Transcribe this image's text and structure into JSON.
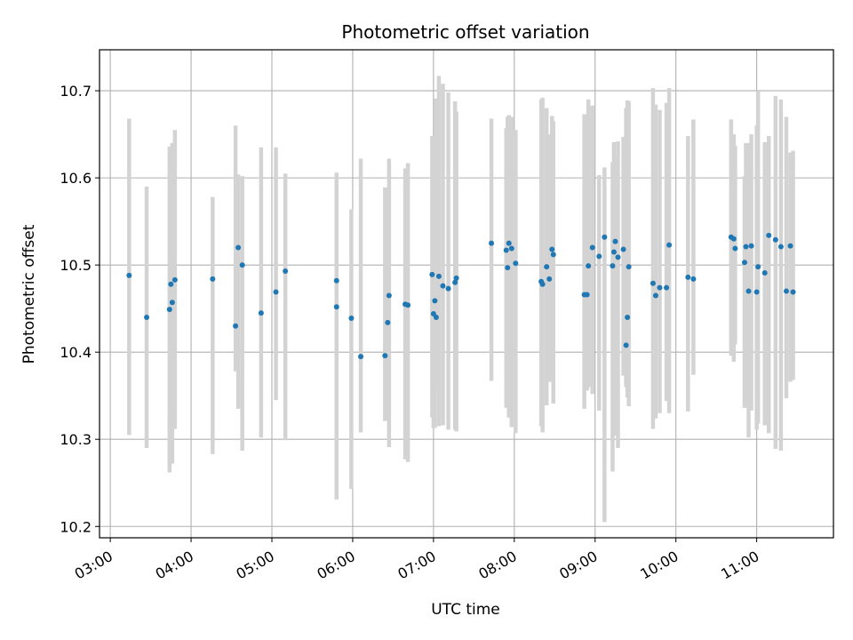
{
  "chart_data": {
    "type": "scatter",
    "title": "Photometric offset variation",
    "xlabel": "UTC time",
    "ylabel": "Photometric offset",
    "xlim": [
      "02:52",
      "11:57"
    ],
    "ylim": [
      10.187,
      10.747
    ],
    "x_ticks": [
      "03:00",
      "04:00",
      "05:00",
      "06:00",
      "07:00",
      "08:00",
      "09:00",
      "10:00",
      "11:00"
    ],
    "y_ticks": [
      "10.2",
      "10.3",
      "10.4",
      "10.5",
      "10.6",
      "10.7"
    ],
    "grid": true,
    "colors": {
      "points": "#1f77b4",
      "errorbars": "#d3d3d3",
      "grid": "#b0b0b0"
    },
    "series": [
      {
        "x": [
          "03:14",
          "03:27",
          "03:44",
          "03:46",
          "03:45",
          "03:48",
          "04:16",
          "04:33",
          "04:35",
          "04:38",
          "04:52",
          "05:03",
          "05:10",
          "05:48",
          "05:48",
          "05:59",
          "06:06",
          "06:24",
          "06:26",
          "06:27",
          "06:39",
          "06:41",
          "06:59",
          "07:01",
          "07:00",
          "07:02",
          "07:04",
          "07:07",
          "07:11",
          "07:16",
          "07:17",
          "07:43",
          "07:54",
          "07:55",
          "07:56",
          "07:58",
          "08:01",
          "08:20",
          "08:21",
          "08:24",
          "08:26",
          "08:28",
          "08:29",
          "08:52",
          "08:54",
          "08:55",
          "08:58",
          "09:03",
          "09:07",
          "09:13",
          "09:14",
          "09:15",
          "09:17",
          "09:21",
          "09:23",
          "09:24",
          "09:25",
          "09:43",
          "09:45",
          "09:48",
          "09:53",
          "09:55",
          "10:09",
          "10:13",
          "10:41",
          "10:43",
          "10:44",
          "10:51",
          "10:52",
          "10:54",
          "10:56",
          "11:00",
          "11:01",
          "11:06",
          "11:09",
          "11:14",
          "11:18",
          "11:22",
          "11:25",
          "11:27"
        ],
        "y": [
          10.488,
          10.44,
          10.449,
          10.457,
          10.478,
          10.483,
          10.484,
          10.43,
          10.52,
          10.5,
          10.445,
          10.469,
          10.493,
          10.482,
          10.452,
          10.439,
          10.395,
          10.396,
          10.434,
          10.465,
          10.455,
          10.454,
          10.489,
          10.459,
          10.444,
          10.44,
          10.487,
          10.476,
          10.473,
          10.48,
          10.485,
          10.525,
          10.517,
          10.497,
          10.525,
          10.519,
          10.502,
          10.481,
          10.478,
          10.498,
          10.484,
          10.518,
          10.512,
          10.466,
          10.466,
          10.499,
          10.52,
          10.51,
          10.532,
          10.499,
          10.515,
          10.527,
          10.509,
          10.518,
          10.408,
          10.44,
          10.498,
          10.479,
          10.465,
          10.474,
          10.474,
          10.523,
          10.486,
          10.484,
          10.532,
          10.53,
          10.519,
          10.503,
          10.521,
          10.47,
          10.522,
          10.469,
          10.498,
          10.491,
          10.534,
          10.529,
          10.521,
          10.47,
          10.522,
          10.469
        ],
        "yerr_low": [
          10.305,
          10.29,
          10.262,
          10.272,
          10.326,
          10.312,
          10.283,
          10.378,
          10.335,
          10.287,
          10.302,
          10.345,
          10.299,
          10.271,
          10.231,
          10.243,
          10.308,
          10.321,
          10.322,
          10.291,
          10.277,
          10.274,
          10.325,
          10.313,
          10.313,
          10.357,
          10.315,
          10.316,
          10.311,
          10.311,
          10.309,
          10.367,
          10.336,
          10.339,
          10.325,
          10.314,
          10.307,
          10.315,
          10.308,
          10.339,
          10.366,
          10.375,
          10.341,
          10.335,
          10.356,
          10.36,
          10.352,
          10.333,
          10.205,
          10.263,
          10.321,
          10.304,
          10.29,
          10.373,
          10.36,
          10.348,
          10.338,
          10.312,
          10.324,
          10.33,
          10.344,
          10.33,
          10.332,
          10.374,
          10.396,
          10.389,
          10.409,
          10.336,
          10.34,
          10.302,
          10.333,
          10.311,
          10.318,
          10.316,
          10.307,
          10.289,
          10.287,
          10.347,
          10.366,
          10.368
        ],
        "yerr_high": [
          10.668,
          10.59,
          10.636,
          10.64,
          10.632,
          10.655,
          10.578,
          10.66,
          10.604,
          10.602,
          10.635,
          10.635,
          10.605,
          10.606,
          10.558,
          10.564,
          10.622,
          10.589,
          10.589,
          10.622,
          10.611,
          10.617,
          10.648,
          10.635,
          10.648,
          10.691,
          10.717,
          10.708,
          10.698,
          10.688,
          10.676,
          10.668,
          10.657,
          10.67,
          10.672,
          10.67,
          10.655,
          10.69,
          10.692,
          10.68,
          10.65,
          10.671,
          10.665,
          10.673,
          10.673,
          10.69,
          10.683,
          10.603,
          10.612,
          10.618,
          10.641,
          10.623,
          10.642,
          10.647,
          10.68,
          10.689,
          10.688,
          10.703,
          10.684,
          10.678,
          10.686,
          10.703,
          10.648,
          10.667,
          10.667,
          10.65,
          10.637,
          10.602,
          10.64,
          10.64,
          10.65,
          10.66,
          10.7,
          10.641,
          10.648,
          10.694,
          10.69,
          10.67,
          10.629,
          10.631
        ]
      }
    ]
  }
}
